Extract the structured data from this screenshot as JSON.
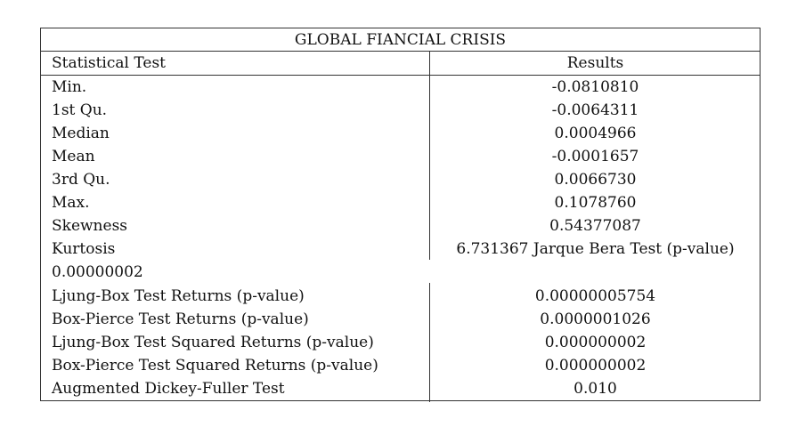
{
  "table": {
    "title": "GLOBAL FIANCIAL CRISIS",
    "header": {
      "test": "Statistical Test",
      "results": "Results"
    },
    "rows": [
      {
        "test": "Min.",
        "result": "-0.0810810"
      },
      {
        "test": "1st Qu.",
        "result": "-0.0064311"
      },
      {
        "test": "Median",
        "result": "0.0004966"
      },
      {
        "test": "Mean",
        "result": "-0.0001657"
      },
      {
        "test": "3rd Qu.",
        "result": "0.0066730"
      },
      {
        "test": "Max.",
        "result": "0.1078760"
      },
      {
        "test": "Skewness",
        "result": "0.54377087"
      },
      {
        "test": "Kurtosis",
        "result": "6.731367 Jarque Bera Test (p-value)"
      },
      {
        "test": "0.00000002",
        "result": ""
      },
      {
        "test": "Ljung-Box Test Returns (p-value)",
        "result": "0.00000005754"
      },
      {
        "test": "Box-Pierce Test Returns (p-value)",
        "result": "0.0000001026"
      },
      {
        "test": "Ljung-Box Test Squared Returns (p-value)",
        "result": "0.000000002"
      },
      {
        "test": "Box-Pierce Test Squared Returns (p-value)",
        "result": "0.000000002"
      },
      {
        "test": "Augmented Dickey-Fuller Test",
        "result": "0.010"
      }
    ]
  }
}
